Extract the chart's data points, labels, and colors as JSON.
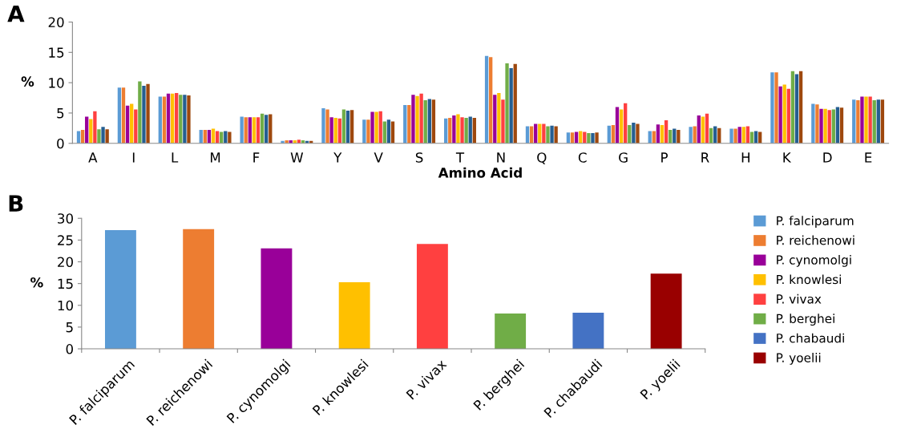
{
  "chart_data": [
    {
      "type": "bar",
      "annotations": [
        "A"
      ],
      "xlabel": "Amino Acid",
      "ylabel": "%",
      "categories": [
        "A",
        "I",
        "L",
        "M",
        "F",
        "W",
        "Y",
        "V",
        "S",
        "T",
        "N",
        "Q",
        "C",
        "G",
        "P",
        "R",
        "H",
        "K",
        "D",
        "E"
      ],
      "ylim": [
        0,
        20
      ],
      "yticks": [
        0,
        5,
        10,
        15,
        20
      ],
      "series": [
        {
          "color": "#5b9bd5",
          "values": [
            2.0,
            9.2,
            7.7,
            2.2,
            4.4,
            0.4,
            5.8,
            3.9,
            6.3,
            4.1,
            14.4,
            2.8,
            1.8,
            2.9,
            2.0,
            2.7,
            2.4,
            11.7,
            6.5,
            7.2
          ]
        },
        {
          "color": "#ed7d31",
          "values": [
            2.2,
            9.2,
            7.7,
            2.2,
            4.3,
            0.5,
            5.6,
            3.9,
            6.3,
            4.2,
            14.2,
            2.8,
            1.8,
            3.0,
            2.0,
            2.8,
            2.4,
            11.7,
            6.4,
            7.1
          ]
        },
        {
          "color": "#990099",
          "values": [
            4.4,
            6.2,
            8.2,
            2.2,
            4.3,
            0.5,
            4.3,
            5.2,
            8.0,
            4.6,
            8.0,
            3.2,
            1.9,
            6.0,
            3.1,
            4.6,
            2.7,
            9.4,
            5.7,
            7.7
          ]
        },
        {
          "color": "#ffc000",
          "values": [
            4.0,
            6.5,
            8.2,
            2.4,
            4.3,
            0.5,
            4.2,
            5.2,
            7.8,
            4.8,
            8.3,
            3.2,
            2.0,
            5.6,
            3.0,
            4.4,
            2.7,
            9.7,
            5.7,
            7.7
          ]
        },
        {
          "color": "#ff4040",
          "values": [
            5.3,
            5.6,
            8.3,
            2.0,
            4.3,
            0.6,
            4.1,
            5.3,
            8.2,
            4.3,
            7.2,
            3.2,
            1.9,
            6.6,
            3.8,
            4.9,
            2.8,
            9.0,
            5.5,
            7.7
          ]
        },
        {
          "color": "#70ad47",
          "values": [
            2.3,
            10.2,
            8.0,
            1.9,
            4.9,
            0.5,
            5.6,
            3.6,
            7.1,
            4.2,
            13.2,
            2.8,
            1.7,
            3.0,
            2.2,
            2.5,
            1.9,
            11.9,
            5.6,
            7.1
          ]
        },
        {
          "color": "#255e91",
          "values": [
            2.7,
            9.5,
            8.0,
            2.0,
            4.7,
            0.4,
            5.4,
            3.9,
            7.3,
            4.4,
            12.4,
            2.9,
            1.7,
            3.4,
            2.4,
            2.8,
            2.0,
            11.4,
            6.0,
            7.2
          ]
        },
        {
          "color": "#9e480e",
          "values": [
            2.3,
            9.8,
            7.9,
            1.9,
            4.8,
            0.4,
            5.5,
            3.6,
            7.2,
            4.2,
            13.1,
            2.8,
            1.8,
            3.2,
            2.2,
            2.5,
            1.9,
            11.9,
            5.9,
            7.2
          ]
        }
      ]
    },
    {
      "type": "bar",
      "annotations": [
        "B"
      ],
      "ylabel": "%",
      "categories": [
        "P. falciparum",
        "P. reichenowi",
        "P. cynomolgi",
        "P. knowlesi",
        "P. vivax",
        "P. berghei",
        "P. chabaudi",
        "P. yoelii"
      ],
      "ylim": [
        0,
        30
      ],
      "yticks": [
        0,
        5,
        10,
        15,
        20,
        25,
        30
      ],
      "legend": "right",
      "stacked": true,
      "series": [
        {
          "name": "P. falciparum",
          "color": "#5b9bd5",
          "values": [
            27.3,
            null,
            null,
            null,
            null,
            null,
            null,
            null
          ]
        },
        {
          "name": "P. reichenowi",
          "color": "#ed7d31",
          "values": [
            null,
            27.5,
            null,
            null,
            null,
            null,
            null,
            null
          ]
        },
        {
          "name": "P. cynomolgi",
          "color": "#990099",
          "values": [
            null,
            null,
            23.1,
            null,
            null,
            null,
            null,
            null
          ]
        },
        {
          "name": "P. knowlesi",
          "color": "#ffc000",
          "values": [
            null,
            null,
            null,
            15.3,
            null,
            null,
            null,
            null
          ]
        },
        {
          "name": "P. vivax",
          "color": "#ff4040",
          "values": [
            null,
            null,
            null,
            null,
            24.1,
            null,
            null,
            null
          ]
        },
        {
          "name": "P. berghei",
          "color": "#70ad47",
          "values": [
            null,
            null,
            null,
            null,
            null,
            8.1,
            null,
            null
          ]
        },
        {
          "name": "P. chabaudi",
          "color": "#4472c4",
          "values": [
            null,
            null,
            null,
            null,
            null,
            null,
            8.3,
            null
          ]
        },
        {
          "name": "P. yoelii",
          "color": "#990000",
          "values": [
            null,
            null,
            null,
            null,
            null,
            null,
            null,
            17.3
          ]
        }
      ]
    }
  ]
}
